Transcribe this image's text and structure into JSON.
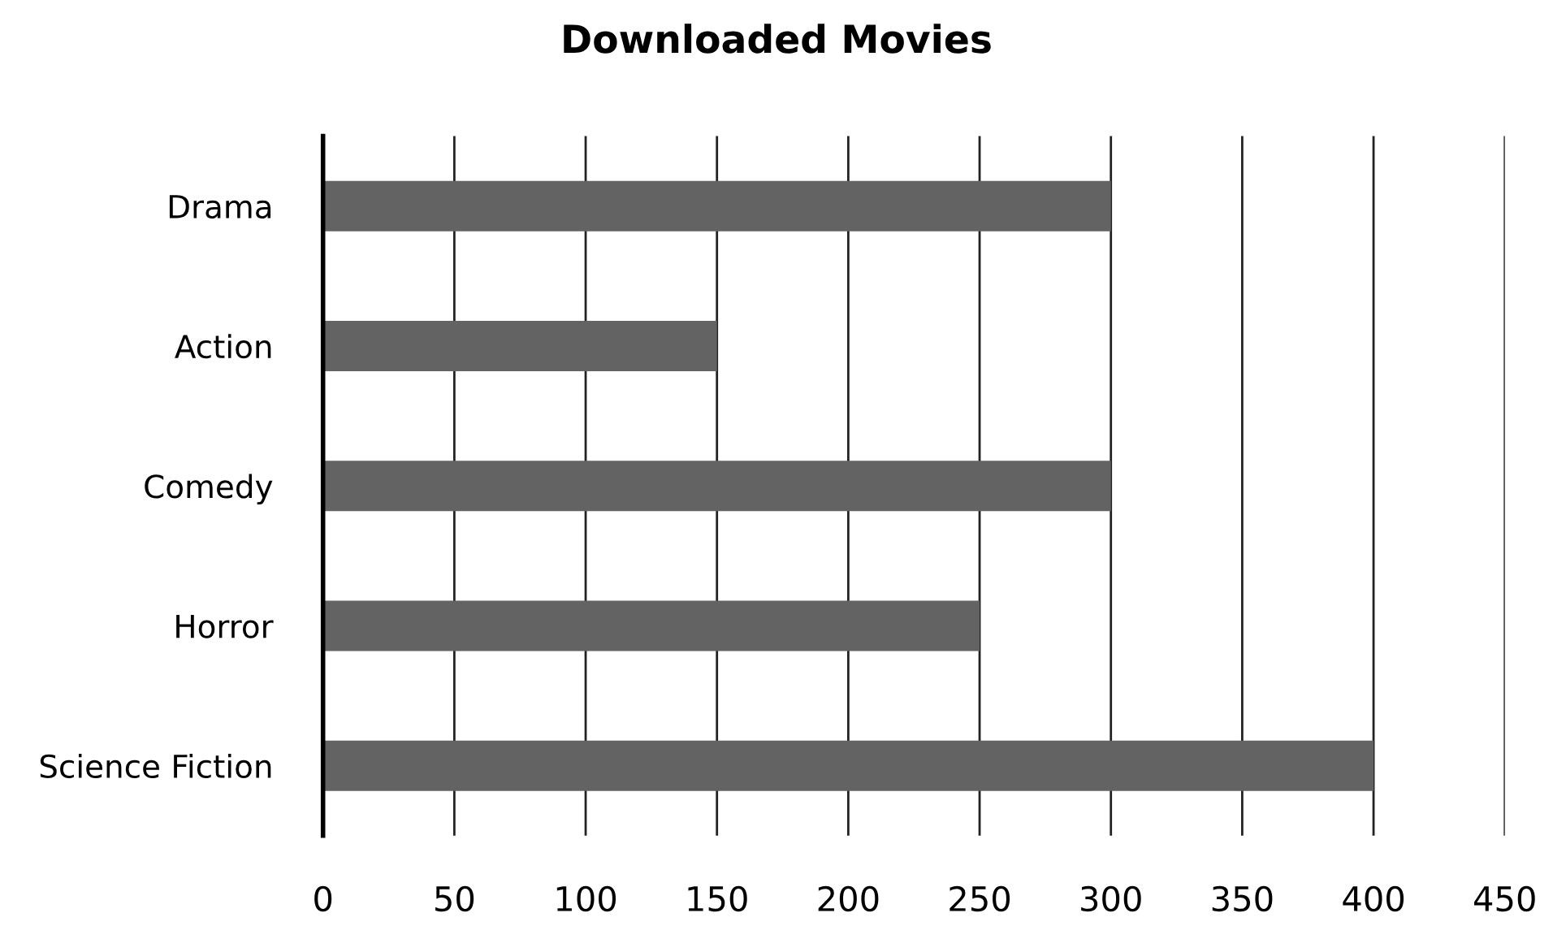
{
  "chart_data": {
    "type": "bar",
    "orientation": "horizontal",
    "title": "Downloaded Movies",
    "categories": [
      "Drama",
      "Action",
      "Comedy",
      "Horror",
      "Science Fiction"
    ],
    "values": [
      300,
      150,
      300,
      250,
      400
    ],
    "color": "#636363",
    "xlim": [
      0,
      450
    ],
    "xticks": [
      0,
      50,
      100,
      150,
      200,
      250,
      300,
      350,
      400,
      450
    ],
    "grid": "x"
  }
}
